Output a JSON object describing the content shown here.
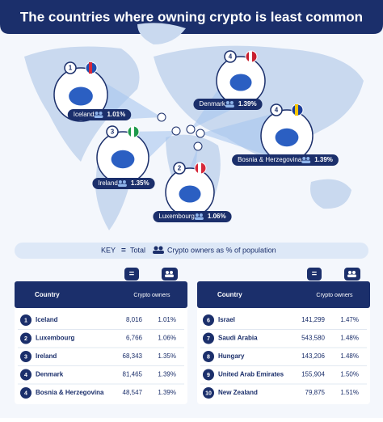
{
  "header": {
    "title": "The countries where owning crypto is least common"
  },
  "map": {
    "callouts": [
      {
        "rank": "1",
        "country": "Iceland",
        "percent": "1.01%"
      },
      {
        "rank": "2",
        "country": "Luxembourg",
        "percent": "1.06%"
      },
      {
        "rank": "3",
        "country": "Ireland",
        "percent": "1.35%"
      },
      {
        "rank": "4",
        "country": "Denmark",
        "percent": "1.39%"
      },
      {
        "rank": "4",
        "country": "Bosnia & Herzegovina",
        "percent": "1.39%"
      }
    ]
  },
  "key": {
    "label": "KEY",
    "total": "Total",
    "owners": "Crypto owners as % of population"
  },
  "tables": [
    {
      "columns": [
        "Country",
        "Crypto owners"
      ],
      "rows": [
        [
          "1",
          "Iceland",
          "8,016",
          "1.01%"
        ],
        [
          "2",
          "Luxembourg",
          "6,766",
          "1.06%"
        ],
        [
          "3",
          "Ireland",
          "68,343",
          "1.35%"
        ],
        [
          "4",
          "Denmark",
          "81,465",
          "1.39%"
        ],
        [
          "4",
          "Bosnia & Herzegovina",
          "48,547",
          "1.39%"
        ]
      ]
    },
    {
      "columns": [
        "Country",
        "Crypto owners"
      ],
      "rows": [
        [
          "6",
          "Israel",
          "141,299",
          "1.47%"
        ],
        [
          "7",
          "Saudi Arabia",
          "543,580",
          "1.48%"
        ],
        [
          "8",
          "Hungary",
          "143,206",
          "1.48%"
        ],
        [
          "9",
          "United Arab Emirates",
          "155,904",
          "1.50%"
        ],
        [
          "10",
          "New Zealand",
          "79,875",
          "1.51%"
        ]
      ]
    }
  ]
}
